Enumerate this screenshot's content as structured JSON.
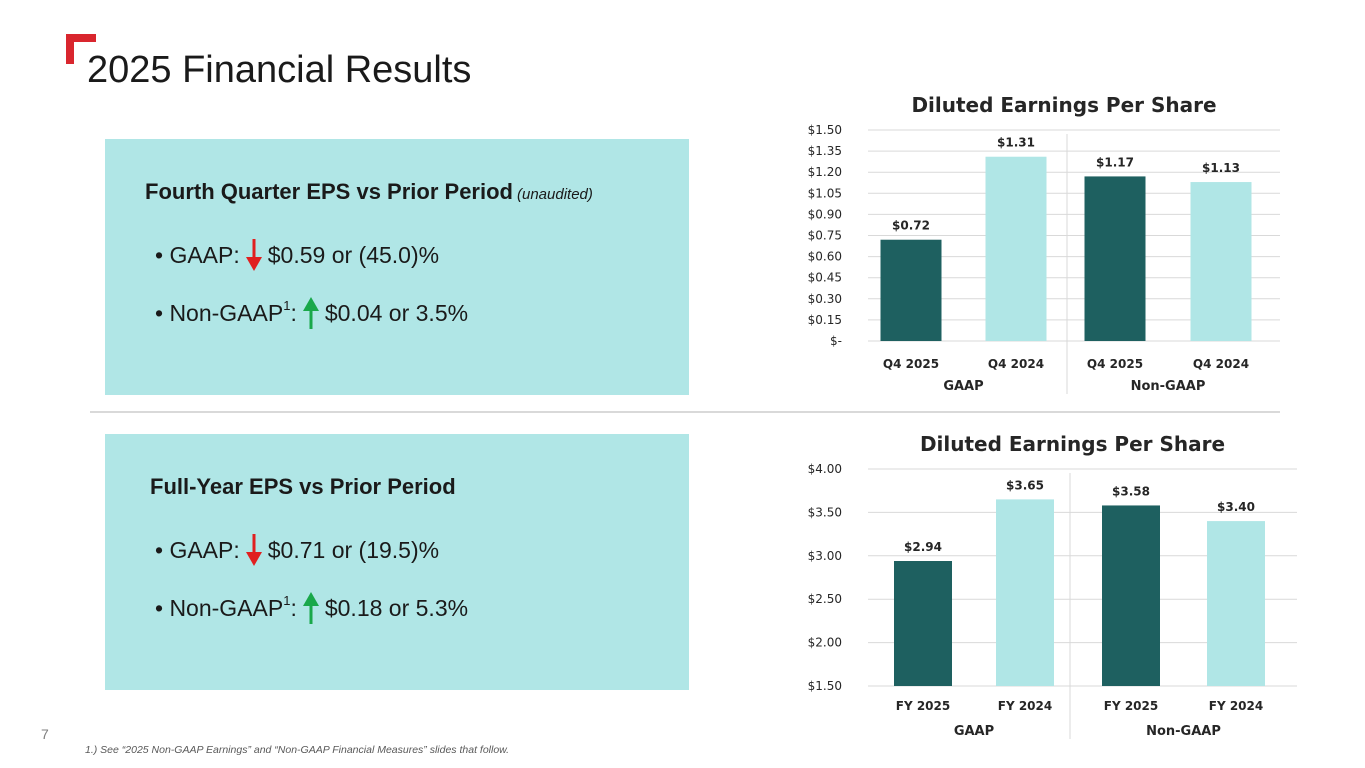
{
  "page": {
    "title": "2025 Financial Results",
    "page_number": "7",
    "footnote": "1.) See “2025 Non-GAAP Earnings” and “Non-GAAP Financial Measures” slides that follow."
  },
  "colors": {
    "accent_red": "#d9262e",
    "panel_bg": "#b0e6e6",
    "bar_dark": "#1e6060",
    "bar_light": "#b0e6e6",
    "arrow_down": "#e02020",
    "arrow_up": "#19a84a",
    "grid": "#d9d9d9"
  },
  "q4_panel": {
    "heading": "Fourth Quarter EPS vs Prior Period",
    "note": "(unaudited)",
    "gaap_label": "• GAAP:",
    "gaap_direction": "down",
    "gaap_value": "$0.59 or (45.0)%",
    "nongaap_label": "• Non-GAAP",
    "nongaap_sup": "1",
    "nongaap_colon": ":",
    "nongaap_direction": "up",
    "nongaap_value": "$0.04 or 3.5%"
  },
  "fy_panel": {
    "heading": "Full-Year EPS vs Prior Period",
    "gaap_label": "• GAAP:",
    "gaap_direction": "down",
    "gaap_value": "$0.71 or (19.5)%",
    "nongaap_label": "• Non-GAAP",
    "nongaap_sup": "1",
    "nongaap_colon": ":",
    "nongaap_direction": "up",
    "nongaap_value": "$0.18 or 5.3%"
  },
  "chart_data": [
    {
      "type": "bar",
      "title": "Diluted Earnings Per Share",
      "categories": [
        "Q4 2025",
        "Q4 2024",
        "Q4 2025",
        "Q4 2024"
      ],
      "groups": [
        {
          "name": "GAAP",
          "start": 0,
          "end": 1
        },
        {
          "name": "Non-GAAP",
          "start": 2,
          "end": 3
        }
      ],
      "values": [
        0.72,
        1.31,
        1.17,
        1.13
      ],
      "data_labels": [
        "$0.72",
        "$1.31",
        "$1.17",
        "$1.13"
      ],
      "bar_styles": [
        "dark",
        "light",
        "dark",
        "light"
      ],
      "ylim": [
        0,
        1.5
      ],
      "yticks": [
        0,
        0.15,
        0.3,
        0.45,
        0.6,
        0.75,
        0.9,
        1.05,
        1.2,
        1.35,
        1.5
      ],
      "ytick_labels": [
        "$-",
        "$0.15",
        "$0.30",
        "$0.45",
        "$0.60",
        "$0.75",
        "$0.90",
        "$1.05",
        "$1.20",
        "$1.35",
        "$1.50"
      ],
      "xlabel": "",
      "ylabel": "",
      "grid": true
    },
    {
      "type": "bar",
      "title": "Diluted Earnings Per Share",
      "categories": [
        "FY 2025",
        "FY 2024",
        "FY 2025",
        "FY 2024"
      ],
      "groups": [
        {
          "name": "GAAP",
          "start": 0,
          "end": 1
        },
        {
          "name": "Non-GAAP",
          "start": 2,
          "end": 3
        }
      ],
      "values": [
        2.94,
        3.65,
        3.58,
        3.4
      ],
      "data_labels": [
        "$2.94",
        "$3.65",
        "$3.58",
        "$3.40"
      ],
      "bar_styles": [
        "dark",
        "light",
        "dark",
        "light"
      ],
      "ylim": [
        1.5,
        4.0
      ],
      "yticks": [
        1.5,
        2.0,
        2.5,
        3.0,
        3.5,
        4.0
      ],
      "ytick_labels": [
        "$1.50",
        "$2.00",
        "$2.50",
        "$3.00",
        "$3.50",
        "$4.00"
      ],
      "xlabel": "",
      "ylabel": "",
      "grid": true
    }
  ]
}
